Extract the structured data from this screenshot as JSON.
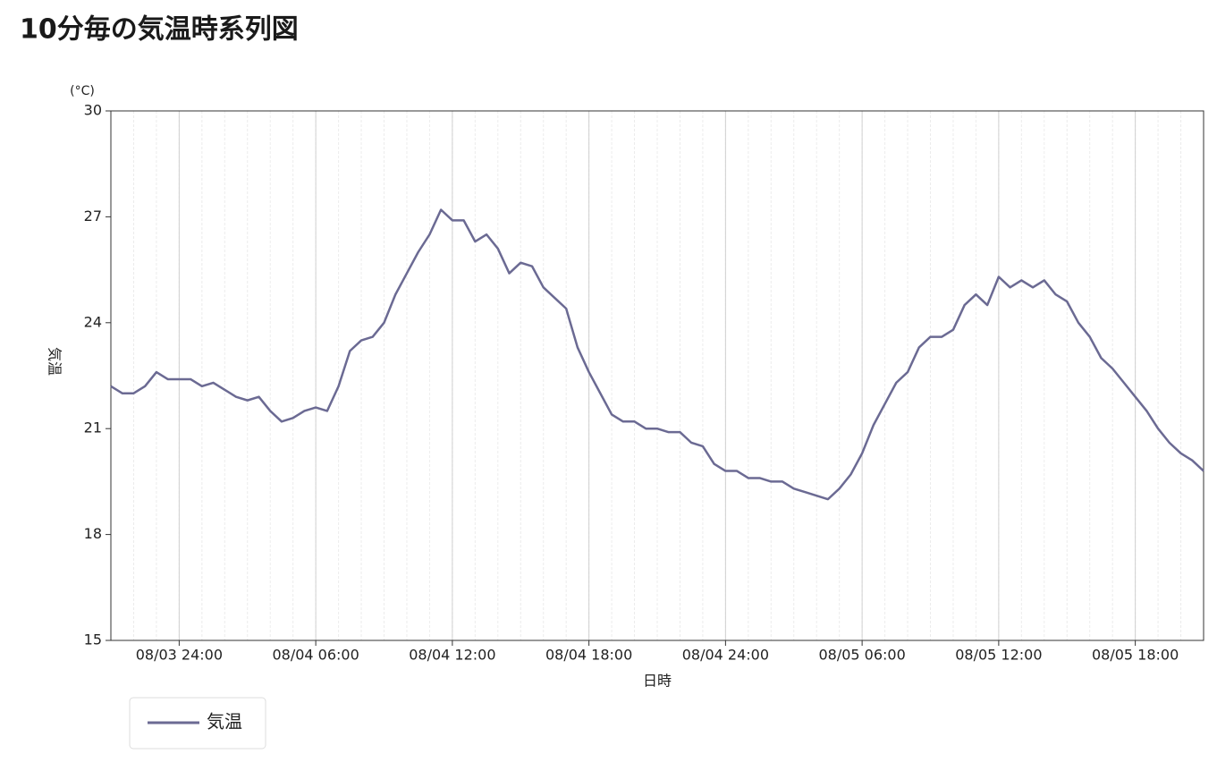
{
  "chart_data": {
    "type": "line",
    "title": "10分毎の気温時系列図",
    "y_unit": "(°C)",
    "ylabel": "気温",
    "xlabel": "日時",
    "x": [
      "08/03 21:00",
      "08/03 21:30",
      "08/03 22:00",
      "08/03 22:30",
      "08/03 23:00",
      "08/03 23:30",
      "08/03 24:00",
      "08/04 00:30",
      "08/04 01:00",
      "08/04 01:30",
      "08/04 02:00",
      "08/04 02:30",
      "08/04 03:00",
      "08/04 03:30",
      "08/04 04:00",
      "08/04 04:30",
      "08/04 05:00",
      "08/04 05:30",
      "08/04 06:00",
      "08/04 06:30",
      "08/04 07:00",
      "08/04 07:30",
      "08/04 08:00",
      "08/04 08:30",
      "08/04 09:00",
      "08/04 09:30",
      "08/04 10:00",
      "08/04 10:30",
      "08/04 11:00",
      "08/04 11:30",
      "08/04 12:00",
      "08/04 12:30",
      "08/04 13:00",
      "08/04 13:30",
      "08/04 14:00",
      "08/04 14:30",
      "08/04 15:00",
      "08/04 15:30",
      "08/04 16:00",
      "08/04 16:30",
      "08/04 17:00",
      "08/04 17:30",
      "08/04 18:00",
      "08/04 18:30",
      "08/04 19:00",
      "08/04 19:30",
      "08/04 20:00",
      "08/04 20:30",
      "08/04 21:00",
      "08/04 21:30",
      "08/04 22:00",
      "08/04 22:30",
      "08/04 23:00",
      "08/04 23:30",
      "08/04 24:00",
      "08/05 00:30",
      "08/05 01:00",
      "08/05 01:30",
      "08/05 02:00",
      "08/05 02:30",
      "08/05 03:00",
      "08/05 03:30",
      "08/05 04:00",
      "08/05 04:30",
      "08/05 05:00",
      "08/05 05:30",
      "08/05 06:00",
      "08/05 06:30",
      "08/05 07:00",
      "08/05 07:30",
      "08/05 08:00",
      "08/05 08:30",
      "08/05 09:00",
      "08/05 09:30",
      "08/05 10:00",
      "08/05 10:30",
      "08/05 11:00",
      "08/05 11:30",
      "08/05 12:00",
      "08/05 12:30",
      "08/05 13:00",
      "08/05 13:30",
      "08/05 14:00",
      "08/05 14:30",
      "08/05 15:00",
      "08/05 15:30",
      "08/05 16:00",
      "08/05 16:30",
      "08/05 17:00",
      "08/05 17:30",
      "08/05 18:00",
      "08/05 18:30",
      "08/05 19:00",
      "08/05 19:30",
      "08/05 20:00",
      "08/05 20:30",
      "08/05 21:00"
    ],
    "series": [
      {
        "name": "気温",
        "color": "#6b6a93",
        "values": [
          22.2,
          22.0,
          22.0,
          22.2,
          22.6,
          22.4,
          22.4,
          22.4,
          22.2,
          22.3,
          22.1,
          21.9,
          21.8,
          21.9,
          21.5,
          21.2,
          21.3,
          21.5,
          21.6,
          21.5,
          22.2,
          23.2,
          23.5,
          23.6,
          24.0,
          24.8,
          25.4,
          26.0,
          26.5,
          27.2,
          26.9,
          26.9,
          26.3,
          26.5,
          26.1,
          25.4,
          25.7,
          25.6,
          25.0,
          24.7,
          24.4,
          23.3,
          22.6,
          22.0,
          21.4,
          21.2,
          21.2,
          21.0,
          21.0,
          20.9,
          20.9,
          20.6,
          20.5,
          20.0,
          19.8,
          19.8,
          19.6,
          19.6,
          19.5,
          19.5,
          19.3,
          19.2,
          19.1,
          19.0,
          19.3,
          19.7,
          20.3,
          21.1,
          21.7,
          22.3,
          22.6,
          23.3,
          23.6,
          23.6,
          23.8,
          24.5,
          24.8,
          24.5,
          25.3,
          25.0,
          25.2,
          25.0,
          25.2,
          24.8,
          24.6,
          24.0,
          23.6,
          23.0,
          22.7,
          22.3,
          21.9,
          21.5,
          21.0,
          20.6,
          20.3,
          20.1,
          19.8
        ]
      }
    ],
    "xticks": [
      "08/03 24:00",
      "08/04 06:00",
      "08/04 12:00",
      "08/04 18:00",
      "08/04 24:00",
      "08/05 06:00",
      "08/05 12:00",
      "08/05 18:00"
    ],
    "ylim": [
      15,
      30
    ],
    "yticks": [
      15,
      18,
      21,
      24,
      27,
      30
    ],
    "grid": true
  }
}
